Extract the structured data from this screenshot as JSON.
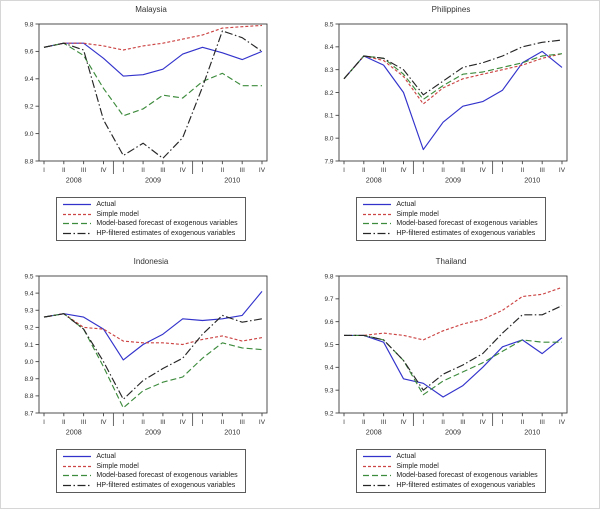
{
  "page": {
    "background": "#ffffff",
    "border_color": "#d6d6d6"
  },
  "axis": {
    "frame_color": "#3c3c3c",
    "tick_color": "#444444",
    "label_color": "#333333"
  },
  "chart_data": [
    {
      "type": "line",
      "title": "Malaysia",
      "x_categories": [
        "I",
        "II",
        "III",
        "IV",
        "I",
        "II",
        "III",
        "IV",
        "I",
        "II",
        "III",
        "IV"
      ],
      "year_labels": [
        "2008",
        "2009",
        "2010"
      ],
      "ylim": [
        8.8,
        9.8
      ],
      "ytick_step": 0.2,
      "grid": false,
      "legend_position": "below",
      "series": [
        {
          "name": "Actual",
          "color": "#3333cc",
          "dash": "solid",
          "values": [
            9.63,
            9.66,
            9.66,
            9.55,
            9.42,
            9.43,
            9.47,
            9.58,
            9.63,
            9.59,
            9.54,
            9.6
          ]
        },
        {
          "name": "Simple model",
          "color": "#cc4444",
          "dash": "short",
          "values": [
            9.63,
            9.66,
            9.66,
            9.64,
            9.61,
            9.64,
            9.66,
            9.69,
            9.72,
            9.77,
            9.78,
            9.79
          ]
        },
        {
          "name": "Model-based forecast of exogenous variables",
          "color": "#3d8b3d",
          "dash": "long",
          "values": [
            9.63,
            9.66,
            9.57,
            9.33,
            9.13,
            9.18,
            9.28,
            9.26,
            9.38,
            9.44,
            9.35,
            9.35
          ]
        },
        {
          "name": "HP-filtered estimates of exogenous variables",
          "color": "#262626",
          "dash": "dashdot",
          "values": [
            9.63,
            9.66,
            9.61,
            9.1,
            8.84,
            8.93,
            8.82,
            8.97,
            9.34,
            9.75,
            9.7,
            9.6
          ]
        }
      ]
    },
    {
      "type": "line",
      "title": "Philippines",
      "x_categories": [
        "I",
        "II",
        "III",
        "IV",
        "I",
        "II",
        "III",
        "IV",
        "I",
        "II",
        "III",
        "IV"
      ],
      "year_labels": [
        "2008",
        "2009",
        "2010"
      ],
      "ylim": [
        7.9,
        8.5
      ],
      "ytick_step": 0.1,
      "grid": false,
      "legend_position": "below",
      "series": [
        {
          "name": "Actual",
          "color": "#3333cc",
          "dash": "solid",
          "values": [
            8.26,
            8.36,
            8.32,
            8.2,
            7.95,
            8.07,
            8.14,
            8.16,
            8.21,
            8.33,
            8.38,
            8.31
          ]
        },
        {
          "name": "Simple model",
          "color": "#cc4444",
          "dash": "short",
          "values": [
            8.26,
            8.36,
            8.34,
            8.27,
            8.15,
            8.22,
            8.26,
            8.28,
            8.3,
            8.32,
            8.35,
            8.37
          ]
        },
        {
          "name": "Model-based forecast of exogenous variables",
          "color": "#3d8b3d",
          "dash": "long",
          "values": [
            8.26,
            8.36,
            8.35,
            8.28,
            8.17,
            8.23,
            8.28,
            8.29,
            8.31,
            8.33,
            8.36,
            8.37
          ]
        },
        {
          "name": "HP-filtered estimates of exogenous variables",
          "color": "#262626",
          "dash": "dashdot",
          "values": [
            8.26,
            8.36,
            8.35,
            8.3,
            8.19,
            8.25,
            8.31,
            8.33,
            8.36,
            8.4,
            8.42,
            8.43
          ]
        }
      ]
    },
    {
      "type": "line",
      "title": "Indonesia",
      "x_categories": [
        "I",
        "II",
        "III",
        "IV",
        "I",
        "II",
        "III",
        "IV",
        "I",
        "II",
        "III",
        "IV"
      ],
      "year_labels": [
        "2008",
        "2009",
        "2010"
      ],
      "ylim": [
        8.7,
        9.5
      ],
      "ytick_step": 0.1,
      "grid": false,
      "legend_position": "below",
      "series": [
        {
          "name": "Actual",
          "color": "#3333cc",
          "dash": "solid",
          "values": [
            9.26,
            9.28,
            9.26,
            9.19,
            9.01,
            9.1,
            9.16,
            9.25,
            9.24,
            9.25,
            9.27,
            9.41
          ]
        },
        {
          "name": "Simple model",
          "color": "#cc4444",
          "dash": "short",
          "values": [
            9.26,
            9.28,
            9.2,
            9.19,
            9.12,
            9.11,
            9.11,
            9.1,
            9.13,
            9.15,
            9.12,
            9.14
          ]
        },
        {
          "name": "Model-based forecast of exogenous variables",
          "color": "#3d8b3d",
          "dash": "long",
          "values": [
            9.26,
            9.28,
            9.19,
            8.97,
            8.73,
            8.83,
            8.88,
            8.91,
            9.02,
            9.11,
            9.08,
            9.07
          ]
        },
        {
          "name": "HP-filtered estimates of exogenous variables",
          "color": "#262626",
          "dash": "dashdot",
          "values": [
            9.26,
            9.28,
            9.19,
            9.0,
            8.78,
            8.89,
            8.96,
            9.02,
            9.16,
            9.27,
            9.23,
            9.25
          ]
        }
      ]
    },
    {
      "type": "line",
      "title": "Thailand",
      "x_categories": [
        "I",
        "II",
        "III",
        "IV",
        "I",
        "II",
        "III",
        "IV",
        "I",
        "II",
        "III",
        "IV"
      ],
      "year_labels": [
        "2008",
        "2009",
        "2010"
      ],
      "ylim": [
        9.2,
        9.8
      ],
      "ytick_step": 0.1,
      "grid": false,
      "legend_position": "below",
      "series": [
        {
          "name": "Actual",
          "color": "#3333cc",
          "dash": "solid",
          "values": [
            9.54,
            9.54,
            9.51,
            9.35,
            9.33,
            9.27,
            9.32,
            9.4,
            9.49,
            9.52,
            9.46,
            9.53
          ]
        },
        {
          "name": "Simple model",
          "color": "#cc4444",
          "dash": "short",
          "values": [
            9.54,
            9.54,
            9.55,
            9.54,
            9.52,
            9.56,
            9.59,
            9.61,
            9.65,
            9.71,
            9.72,
            9.75
          ]
        },
        {
          "name": "Model-based forecast of exogenous variables",
          "color": "#3d8b3d",
          "dash": "long",
          "values": [
            9.54,
            9.54,
            9.52,
            9.43,
            9.28,
            9.34,
            9.38,
            9.42,
            9.47,
            9.52,
            9.51,
            9.51
          ]
        },
        {
          "name": "HP-filtered estimates of exogenous variables",
          "color": "#262626",
          "dash": "dashdot",
          "values": [
            9.54,
            9.54,
            9.52,
            9.43,
            9.3,
            9.37,
            9.41,
            9.46,
            9.55,
            9.63,
            9.63,
            9.67
          ]
        }
      ]
    }
  ]
}
